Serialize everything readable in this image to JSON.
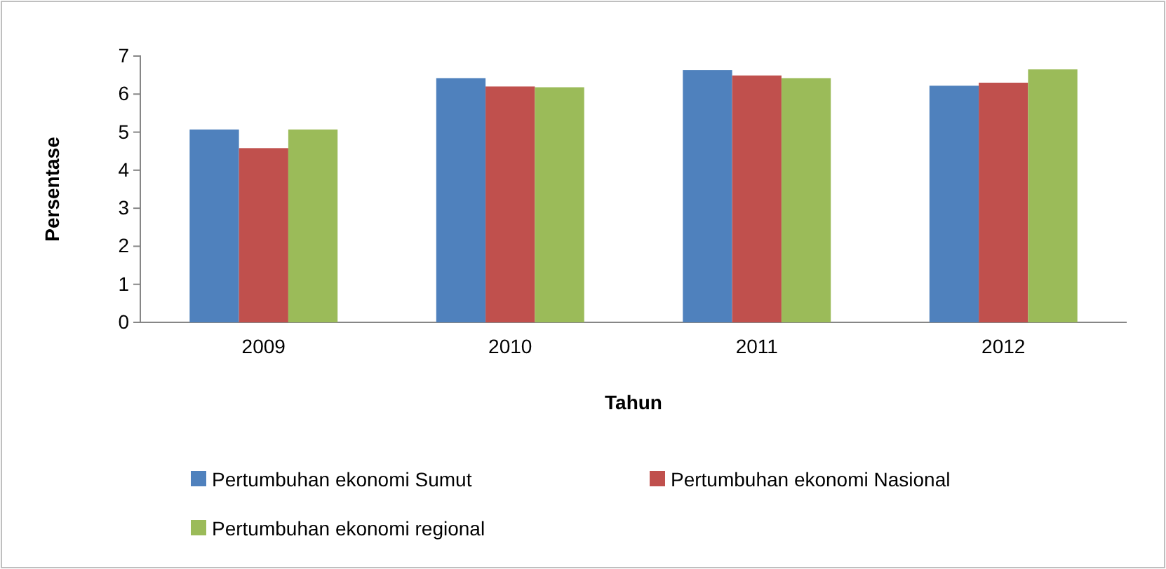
{
  "chart_data": {
    "type": "bar",
    "xlabel": "Tahun",
    "ylabel": "Persentase",
    "categories": [
      "2009",
      "2010",
      "2011",
      "2012"
    ],
    "series": [
      {
        "name": "Pertumbuhan ekonomi Sumut",
        "color": "#4f81bd",
        "values": [
          5.07,
          6.42,
          6.63,
          6.22
        ]
      },
      {
        "name": "Pertumbuhan ekonomi Nasional",
        "color": "#c0504d",
        "values": [
          4.58,
          6.2,
          6.49,
          6.3
        ]
      },
      {
        "name": "Pertumbuhan ekonomi regional",
        "color": "#9bbb59",
        "values": [
          5.07,
          6.18,
          6.42,
          6.65
        ]
      }
    ],
    "ylim": [
      0,
      7
    ],
    "yticks": [
      0,
      1,
      2,
      3,
      4,
      5,
      6,
      7
    ],
    "grid": false,
    "legend": "bottom"
  }
}
